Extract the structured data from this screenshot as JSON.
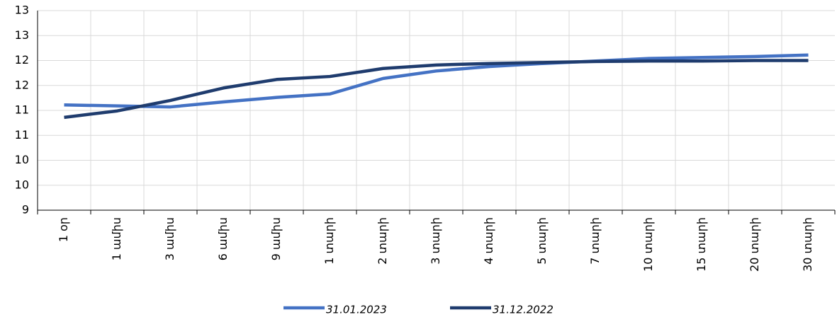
{
  "chart_data": {
    "type": "line",
    "categories": [
      "1 օր",
      "1 ամիս",
      "3 ամիս",
      "6 ամիս",
      "9 ամիս",
      "1 տարի",
      "2 տարի",
      "3 տարի",
      "4 տարի",
      "5 տարի",
      "7 տարի",
      "10 տարի",
      "15 տարի",
      "20 տարի",
      "30 տարի"
    ],
    "series": [
      {
        "name": "31.01.2023",
        "color": "#4472c4",
        "values": [
          11.11,
          11.09,
          11.07,
          11.17,
          11.26,
          11.33,
          11.64,
          11.79,
          11.88,
          11.94,
          11.99,
          12.04,
          12.06,
          12.08,
          12.11
        ]
      },
      {
        "name": "31.12.2022",
        "color": "#1f3c6e",
        "values": [
          10.86,
          10.99,
          11.2,
          11.45,
          11.62,
          11.68,
          11.84,
          11.91,
          11.94,
          11.96,
          11.98,
          11.99,
          11.99,
          12.0,
          12.0
        ]
      }
    ],
    "ylim": [
      9,
      13
    ],
    "yticks": [
      9,
      {
        "value": 9.5,
        "label": "10"
      },
      10,
      {
        "value": 10.5,
        "label": "11"
      },
      11,
      {
        "value": 11.5,
        "label": "12"
      },
      12,
      {
        "value": 12.5,
        "label": "13"
      },
      13
    ],
    "grid": true,
    "legend": "bottom"
  }
}
